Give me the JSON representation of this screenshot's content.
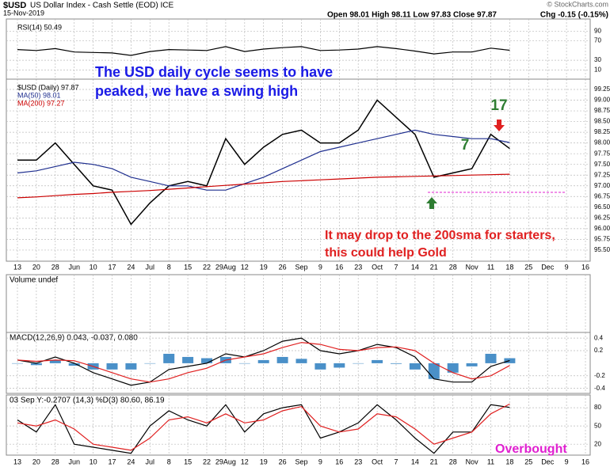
{
  "header": {
    "symbol": "$USD",
    "name": "US Dollar Index - Cash Settle (EOD) ICE",
    "date": "15-Nov-2019",
    "ohlc": "Open 98.01  High 98.11  Low 97.83  Close 97.87",
    "chg": "Chg -0.15 (-0.15%)",
    "credit": "© StockCharts.com"
  },
  "chart_data": [
    {
      "type": "line",
      "categories": [
        "13",
        "20",
        "28",
        "Jun",
        "10",
        "17",
        "24",
        "Jul",
        "8",
        "15",
        "22",
        "29Aug",
        "12",
        "19",
        "26",
        "Sep",
        "9",
        "16",
        "23",
        "Oct",
        "7",
        "14",
        "21",
        "28",
        "Nov",
        "11",
        "18",
        "25",
        "Dec",
        "9",
        "16"
      ],
      "ylim": [
        95.24,
        99.49
      ],
      "yticks": [
        {
          "value": 95.5,
          "label": "95.50"
        },
        {
          "value": 95.75,
          "label": "95.75"
        },
        {
          "value": 96,
          "label": "96.00"
        },
        {
          "value": 96.25,
          "label": "96.25"
        },
        {
          "value": 96.5,
          "label": "96.50"
        },
        {
          "value": 96.75,
          "label": "96.75"
        },
        {
          "value": 97,
          "label": "97.00"
        },
        {
          "value": 97.25,
          "label": "97.25"
        },
        {
          "value": 97.5,
          "label": "97.50"
        },
        {
          "value": 97.75,
          "label": "97.75"
        },
        {
          "value": 98,
          "label": "98.00"
        },
        {
          "value": 98.25,
          "label": "98.25"
        },
        {
          "value": 98.5,
          "label": "98.50"
        },
        {
          "value": 98.75,
          "label": "98.75"
        },
        {
          "value": 99,
          "label": "99.00"
        },
        {
          "value": 99.25,
          "label": "99.25"
        }
      ],
      "grid": true,
      "series": [
        {
          "name": "$USD (Daily) 97.87",
          "color": "#000000",
          "values": [
            97.6,
            97.6,
            98.0,
            97.5,
            97.0,
            96.9,
            96.1,
            96.6,
            97.0,
            97.1,
            97.0,
            98.1,
            97.5,
            97.9,
            98.2,
            98.3,
            98.0,
            98.0,
            98.3,
            99.0,
            98.6,
            98.2,
            97.2,
            97.3,
            97.4,
            98.2,
            97.87,
            null,
            null,
            null,
            null
          ]
        },
        {
          "name": "MA(50) 98.01",
          "color": "#1f2f8f",
          "values": [
            97.3,
            97.35,
            97.45,
            97.55,
            97.5,
            97.4,
            97.2,
            97.1,
            97.0,
            97.0,
            96.9,
            96.9,
            97.05,
            97.2,
            97.4,
            97.6,
            97.8,
            97.9,
            98.0,
            98.1,
            98.2,
            98.3,
            98.2,
            98.15,
            98.1,
            98.1,
            98.01,
            null,
            null,
            null,
            null
          ]
        },
        {
          "name": "MA(200) 97.27",
          "color": "#cc0000",
          "values": [
            96.72,
            96.74,
            96.77,
            96.8,
            96.82,
            96.85,
            96.87,
            96.89,
            96.92,
            96.95,
            96.98,
            97.01,
            97.04,
            97.07,
            97.1,
            97.12,
            97.14,
            97.16,
            97.18,
            97.2,
            97.21,
            97.22,
            97.23,
            97.24,
            97.25,
            97.26,
            97.27,
            null,
            null,
            null,
            null
          ]
        }
      ],
      "annotations": [
        {
          "text": "The USD daily cycle seems to have",
          "color": "#1a1ae6"
        },
        {
          "text": "peaked, we have a swing high",
          "color": "#1a1ae6"
        },
        {
          "text": "17",
          "color": "#2e7d32"
        },
        {
          "text": "7",
          "color": "#2e7d32"
        },
        {
          "text": "It may drop to the 200sma for starters,",
          "color": "#e02020"
        },
        {
          "text": "this could help Gold",
          "color": "#e02020"
        }
      ]
    },
    {
      "type": "line",
      "ylim": [
        -9,
        115
      ],
      "yticks": [
        10,
        30,
        70,
        90
      ],
      "grid": true,
      "series": [
        {
          "name": "RSI(14) 50.49",
          "color": "#000000",
          "values": [
            52,
            50,
            54,
            47,
            46,
            45,
            40,
            48,
            52,
            51,
            50,
            58,
            48,
            53,
            56,
            58,
            50,
            51,
            53,
            58,
            54,
            49,
            43,
            47,
            47,
            55,
            50.49,
            null,
            null,
            null,
            null
          ]
        }
      ]
    },
    {
      "type": "bar",
      "title": "Volume undef"
    },
    {
      "type": "line",
      "title": "MACD(12,26,9) 0.043, -0.037, 0.080",
      "ylim": [
        -0.48,
        0.49
      ],
      "yticks": [
        -0.4,
        -0.2,
        0.2,
        0.4
      ],
      "grid": true,
      "series": [
        {
          "style": "bar",
          "color": "#4a90c8",
          "values": [
            0,
            -0.03,
            0.05,
            -0.04,
            -0.1,
            -0.1,
            -0.1,
            0,
            0.15,
            0.1,
            0.08,
            0.1,
            0,
            0.05,
            0.1,
            0.07,
            -0.1,
            -0.07,
            0,
            0.05,
            -0.01,
            -0.1,
            -0.25,
            -0.15,
            -0.05,
            0.15,
            0.08,
            null,
            null,
            null,
            null
          ]
        },
        {
          "color": "#000000",
          "values": [
            0.05,
            0.0,
            0.1,
            0.0,
            -0.15,
            -0.25,
            -0.35,
            -0.3,
            -0.1,
            -0.05,
            0.0,
            0.15,
            0.1,
            0.2,
            0.35,
            0.4,
            0.2,
            0.15,
            0.2,
            0.3,
            0.25,
            0.1,
            -0.25,
            -0.3,
            -0.3,
            -0.05,
            0.043,
            null,
            null,
            null,
            null
          ]
        },
        {
          "color": "#e02020",
          "values": [
            0.05,
            0.03,
            0.05,
            0.04,
            -0.05,
            -0.15,
            -0.25,
            -0.3,
            -0.25,
            -0.15,
            -0.08,
            0.05,
            0.1,
            0.15,
            0.25,
            0.33,
            0.3,
            0.22,
            0.2,
            0.25,
            0.26,
            0.2,
            0.0,
            -0.15,
            -0.25,
            -0.2,
            -0.037,
            null,
            null,
            null,
            null
          ]
        }
      ]
    },
    {
      "type": "line",
      "title": "03 Sep Y:-0.2707 (14,3) %D(3) 80.60, 86.19",
      "ylim": [
        2,
        101
      ],
      "yticks": [
        20,
        50,
        80
      ],
      "grid": true,
      "series": [
        {
          "color": "#000000",
          "values": [
            60,
            40,
            85,
            20,
            15,
            10,
            5,
            50,
            75,
            60,
            50,
            85,
            40,
            70,
            80,
            85,
            30,
            40,
            55,
            85,
            60,
            30,
            5,
            40,
            40,
            85,
            80.6,
            null,
            null,
            null,
            null
          ]
        },
        {
          "color": "#e02020",
          "values": [
            55,
            50,
            60,
            45,
            20,
            15,
            10,
            30,
            60,
            65,
            55,
            70,
            55,
            60,
            75,
            82,
            50,
            40,
            45,
            70,
            65,
            45,
            20,
            30,
            40,
            70,
            86.19,
            null,
            null,
            null,
            null
          ]
        }
      ],
      "annotations": [
        {
          "text": "Overbought",
          "color": "#e020d0"
        }
      ]
    }
  ]
}
